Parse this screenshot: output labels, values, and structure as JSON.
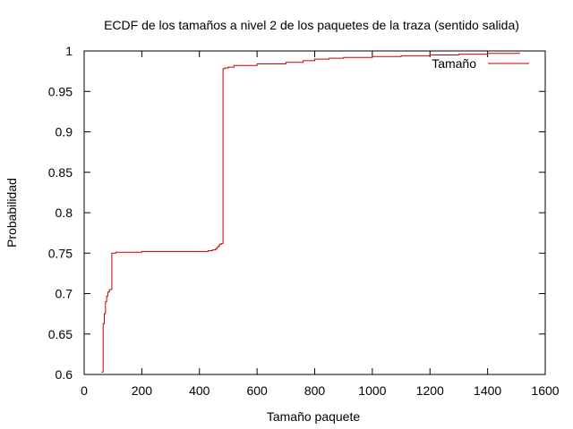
{
  "chart_data": {
    "type": "line",
    "title": "ECDF de los tamaños a nivel 2 de los paquetes de la traza (sentido salida)",
    "xlabel": "Tamaño paquete",
    "ylabel": "Probabilidad",
    "xlim": [
      0,
      1600
    ],
    "ylim": [
      0.6,
      1
    ],
    "xticks": [
      0,
      200,
      400,
      600,
      800,
      1000,
      1200,
      1400,
      1600
    ],
    "xtick_labels": [
      "0",
      "200",
      "400",
      "600",
      "800",
      "1000",
      "1200",
      "1400",
      "1600"
    ],
    "yticks": [
      0.6,
      0.65,
      0.7,
      0.75,
      0.8,
      0.85,
      0.9,
      0.95,
      1
    ],
    "ytick_labels": [
      "0.6",
      "0.65",
      "0.7",
      "0.75",
      "0.8",
      "0.85",
      "0.9",
      "0.95",
      "1"
    ],
    "grid": false,
    "legend_position": "top-right",
    "series": [
      {
        "name": "Tamaño",
        "color": "#cc0000",
        "step": true,
        "x": [
          60,
          66,
          70,
          74,
          78,
          82,
          88,
          96,
          100,
          110,
          150,
          200,
          300,
          350,
          400,
          430,
          445,
          455,
          460,
          466,
          470,
          476,
          482,
          488,
          500,
          520,
          600,
          700,
          760,
          800,
          850,
          900,
          1000,
          1100,
          1200,
          1300,
          1400,
          1510
        ],
        "y": [
          0.603,
          0.663,
          0.675,
          0.69,
          0.697,
          0.702,
          0.705,
          0.75,
          0.75,
          0.751,
          0.751,
          0.752,
          0.752,
          0.752,
          0.752,
          0.753,
          0.754,
          0.755,
          0.757,
          0.759,
          0.761,
          0.762,
          0.978,
          0.979,
          0.98,
          0.982,
          0.984,
          0.986,
          0.988,
          0.99,
          0.991,
          0.992,
          0.993,
          0.994,
          0.995,
          0.996,
          0.997,
          0.998
        ]
      }
    ]
  }
}
